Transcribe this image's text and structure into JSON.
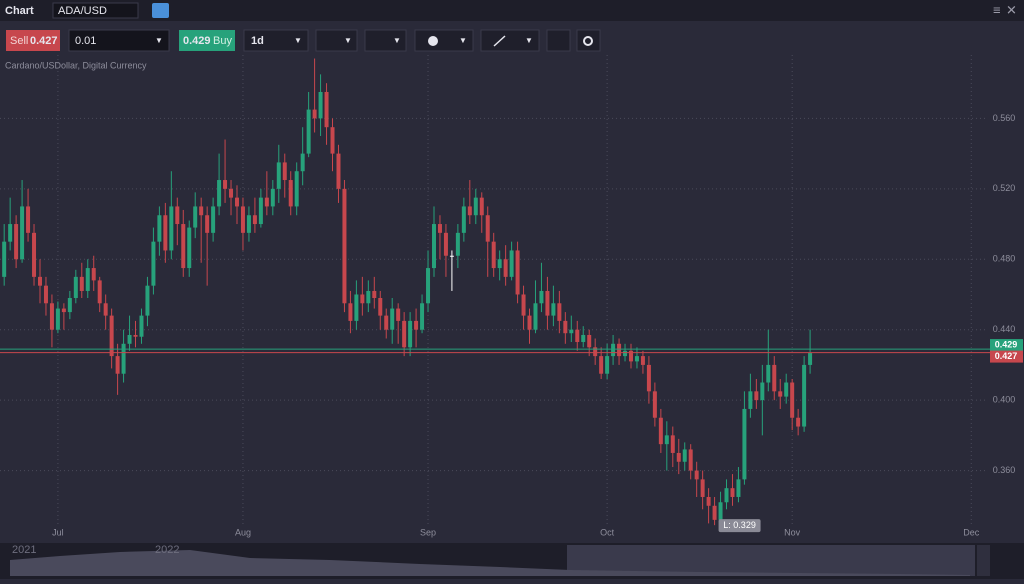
{
  "header": {
    "title": "Chart",
    "symbol": "ADA/USD"
  },
  "toolbar": {
    "sell_label": "Sell",
    "sell_price": "0.427",
    "quantity": "0.01",
    "buy_price": "0.429",
    "buy_label": "Buy",
    "timeframe": "1d"
  },
  "chart_data": {
    "type": "candlestick",
    "subtitle": "Cardano/USDollar, Digital Currency",
    "ohlc": [
      [
        0.47,
        0.5,
        0.465,
        0.49
      ],
      [
        0.49,
        0.515,
        0.485,
        0.5
      ],
      [
        0.5,
        0.505,
        0.475,
        0.48
      ],
      [
        0.48,
        0.525,
        0.478,
        0.51
      ],
      [
        0.51,
        0.52,
        0.49,
        0.495
      ],
      [
        0.495,
        0.5,
        0.465,
        0.47
      ],
      [
        0.47,
        0.48,
        0.455,
        0.465
      ],
      [
        0.465,
        0.47,
        0.448,
        0.455
      ],
      [
        0.455,
        0.46,
        0.43,
        0.44
      ],
      [
        0.44,
        0.456,
        0.438,
        0.452
      ],
      [
        0.452,
        0.455,
        0.44,
        0.45
      ],
      [
        0.45,
        0.462,
        0.446,
        0.458
      ],
      [
        0.458,
        0.474,
        0.455,
        0.47
      ],
      [
        0.47,
        0.478,
        0.458,
        0.462
      ],
      [
        0.462,
        0.48,
        0.458,
        0.475
      ],
      [
        0.475,
        0.482,
        0.462,
        0.468
      ],
      [
        0.468,
        0.47,
        0.45,
        0.455
      ],
      [
        0.455,
        0.46,
        0.44,
        0.448
      ],
      [
        0.448,
        0.452,
        0.418,
        0.425
      ],
      [
        0.425,
        0.432,
        0.403,
        0.415
      ],
      [
        0.415,
        0.44,
        0.41,
        0.432
      ],
      [
        0.432,
        0.448,
        0.428,
        0.437
      ],
      [
        0.437,
        0.445,
        0.43,
        0.436
      ],
      [
        0.436,
        0.452,
        0.432,
        0.448
      ],
      [
        0.448,
        0.47,
        0.442,
        0.465
      ],
      [
        0.465,
        0.498,
        0.46,
        0.49
      ],
      [
        0.49,
        0.51,
        0.482,
        0.505
      ],
      [
        0.505,
        0.512,
        0.478,
        0.485
      ],
      [
        0.485,
        0.53,
        0.48,
        0.51
      ],
      [
        0.51,
        0.515,
        0.488,
        0.5
      ],
      [
        0.5,
        0.508,
        0.47,
        0.475
      ],
      [
        0.475,
        0.502,
        0.47,
        0.498
      ],
      [
        0.498,
        0.518,
        0.492,
        0.51
      ],
      [
        0.51,
        0.515,
        0.478,
        0.505
      ],
      [
        0.505,
        0.51,
        0.465,
        0.495
      ],
      [
        0.495,
        0.515,
        0.49,
        0.51
      ],
      [
        0.51,
        0.54,
        0.505,
        0.525
      ],
      [
        0.525,
        0.548,
        0.512,
        0.52
      ],
      [
        0.52,
        0.525,
        0.505,
        0.515
      ],
      [
        0.515,
        0.522,
        0.5,
        0.51
      ],
      [
        0.51,
        0.515,
        0.485,
        0.495
      ],
      [
        0.495,
        0.51,
        0.49,
        0.505
      ],
      [
        0.505,
        0.515,
        0.495,
        0.5
      ],
      [
        0.5,
        0.52,
        0.498,
        0.515
      ],
      [
        0.515,
        0.53,
        0.505,
        0.51
      ],
      [
        0.51,
        0.525,
        0.505,
        0.52
      ],
      [
        0.52,
        0.545,
        0.512,
        0.535
      ],
      [
        0.535,
        0.54,
        0.515,
        0.525
      ],
      [
        0.525,
        0.53,
        0.505,
        0.51
      ],
      [
        0.51,
        0.535,
        0.505,
        0.53
      ],
      [
        0.53,
        0.555,
        0.522,
        0.54
      ],
      [
        0.54,
        0.575,
        0.538,
        0.565
      ],
      [
        0.565,
        0.594,
        0.552,
        0.56
      ],
      [
        0.56,
        0.585,
        0.55,
        0.575
      ],
      [
        0.575,
        0.58,
        0.545,
        0.555
      ],
      [
        0.555,
        0.56,
        0.53,
        0.54
      ],
      [
        0.54,
        0.545,
        0.512,
        0.52
      ],
      [
        0.52,
        0.525,
        0.45,
        0.455
      ],
      [
        0.455,
        0.462,
        0.438,
        0.445
      ],
      [
        0.445,
        0.468,
        0.44,
        0.46
      ],
      [
        0.46,
        0.47,
        0.448,
        0.455
      ],
      [
        0.455,
        0.468,
        0.45,
        0.462
      ],
      [
        0.462,
        0.47,
        0.452,
        0.458
      ],
      [
        0.458,
        0.462,
        0.44,
        0.448
      ],
      [
        0.448,
        0.452,
        0.435,
        0.44
      ],
      [
        0.44,
        0.458,
        0.432,
        0.452
      ],
      [
        0.452,
        0.455,
        0.432,
        0.445
      ],
      [
        0.445,
        0.45,
        0.425,
        0.43
      ],
      [
        0.43,
        0.45,
        0.425,
        0.445
      ],
      [
        0.445,
        0.452,
        0.43,
        0.44
      ],
      [
        0.44,
        0.46,
        0.438,
        0.455
      ],
      [
        0.455,
        0.485,
        0.45,
        0.475
      ],
      [
        0.475,
        0.51,
        0.47,
        0.5
      ],
      [
        0.5,
        0.505,
        0.48,
        0.495
      ],
      [
        0.495,
        0.5,
        0.47,
        0.482
      ],
      [
        0.482,
        0.485,
        0.462,
        0.482
      ],
      [
        0.482,
        0.5,
        0.475,
        0.495
      ],
      [
        0.495,
        0.515,
        0.49,
        0.51
      ],
      [
        0.51,
        0.525,
        0.5,
        0.505
      ],
      [
        0.505,
        0.52,
        0.5,
        0.515
      ],
      [
        0.515,
        0.518,
        0.495,
        0.505
      ],
      [
        0.505,
        0.51,
        0.47,
        0.49
      ],
      [
        0.49,
        0.495,
        0.47,
        0.475
      ],
      [
        0.475,
        0.485,
        0.468,
        0.48
      ],
      [
        0.48,
        0.488,
        0.465,
        0.47
      ],
      [
        0.47,
        0.49,
        0.468,
        0.485
      ],
      [
        0.485,
        0.49,
        0.455,
        0.46
      ],
      [
        0.46,
        0.465,
        0.44,
        0.448
      ],
      [
        0.448,
        0.452,
        0.432,
        0.44
      ],
      [
        0.44,
        0.468,
        0.438,
        0.455
      ],
      [
        0.455,
        0.478,
        0.45,
        0.462
      ],
      [
        0.462,
        0.47,
        0.44,
        0.448
      ],
      [
        0.448,
        0.465,
        0.442,
        0.455
      ],
      [
        0.455,
        0.462,
        0.438,
        0.445
      ],
      [
        0.445,
        0.45,
        0.432,
        0.438
      ],
      [
        0.438,
        0.448,
        0.433,
        0.44
      ],
      [
        0.44,
        0.445,
        0.428,
        0.433
      ],
      [
        0.433,
        0.442,
        0.43,
        0.437
      ],
      [
        0.437,
        0.44,
        0.425,
        0.43
      ],
      [
        0.43,
        0.435,
        0.42,
        0.425
      ],
      [
        0.425,
        0.43,
        0.412,
        0.415
      ],
      [
        0.415,
        0.432,
        0.412,
        0.425
      ],
      [
        0.425,
        0.437,
        0.42,
        0.432
      ],
      [
        0.432,
        0.435,
        0.42,
        0.425
      ],
      [
        0.425,
        0.432,
        0.422,
        0.428
      ],
      [
        0.428,
        0.432,
        0.418,
        0.422
      ],
      [
        0.422,
        0.43,
        0.418,
        0.425
      ],
      [
        0.425,
        0.428,
        0.415,
        0.42
      ],
      [
        0.42,
        0.425,
        0.398,
        0.405
      ],
      [
        0.405,
        0.41,
        0.385,
        0.39
      ],
      [
        0.39,
        0.395,
        0.37,
        0.375
      ],
      [
        0.375,
        0.388,
        0.36,
        0.38
      ],
      [
        0.38,
        0.385,
        0.362,
        0.37
      ],
      [
        0.37,
        0.378,
        0.358,
        0.365
      ],
      [
        0.365,
        0.376,
        0.36,
        0.372
      ],
      [
        0.372,
        0.375,
        0.355,
        0.36
      ],
      [
        0.36,
        0.365,
        0.345,
        0.355
      ],
      [
        0.355,
        0.36,
        0.338,
        0.345
      ],
      [
        0.345,
        0.35,
        0.33,
        0.34
      ],
      [
        0.34,
        0.345,
        0.329,
        0.332
      ],
      [
        0.332,
        0.348,
        0.329,
        0.342
      ],
      [
        0.342,
        0.355,
        0.338,
        0.35
      ],
      [
        0.35,
        0.358,
        0.34,
        0.345
      ],
      [
        0.345,
        0.362,
        0.342,
        0.355
      ],
      [
        0.355,
        0.405,
        0.352,
        0.395
      ],
      [
        0.395,
        0.415,
        0.39,
        0.405
      ],
      [
        0.405,
        0.412,
        0.395,
        0.4
      ],
      [
        0.4,
        0.42,
        0.38,
        0.41
      ],
      [
        0.41,
        0.44,
        0.405,
        0.42
      ],
      [
        0.42,
        0.425,
        0.4,
        0.405
      ],
      [
        0.405,
        0.412,
        0.395,
        0.402
      ],
      [
        0.402,
        0.415,
        0.398,
        0.41
      ],
      [
        0.41,
        0.412,
        0.383,
        0.39
      ],
      [
        0.39,
        0.395,
        0.38,
        0.385
      ],
      [
        0.385,
        0.425,
        0.382,
        0.42
      ],
      [
        0.42,
        0.44,
        0.415,
        0.427
      ]
    ],
    "up_color": "#27a27b",
    "down_color": "#c7474d",
    "flat_color": "#ffffff",
    "ylim": [
      0.32,
      0.596
    ],
    "yticks": [
      {
        "value": 0.36,
        "label": "0.360"
      },
      {
        "value": 0.4,
        "label": "0.400"
      },
      {
        "value": 0.44,
        "label": "0.440"
      },
      {
        "value": 0.48,
        "label": "0.480"
      },
      {
        "value": 0.52,
        "label": "0.520"
      },
      {
        "value": 0.56,
        "label": "0.560"
      }
    ],
    "xlim": [
      -0.7,
      164.3
    ],
    "xticks": [
      {
        "value": 9,
        "label": "Jul"
      },
      {
        "value": 40,
        "label": "Aug"
      },
      {
        "value": 71,
        "label": "Sep"
      },
      {
        "value": 101,
        "label": "Oct"
      },
      {
        "value": 132,
        "label": "Nov"
      },
      {
        "value": 162,
        "label": "Dec"
      }
    ],
    "grid": true,
    "price_lines": [
      {
        "value": 0.429,
        "color": "#27a27b"
      },
      {
        "value": 0.427,
        "color": "#c7474d"
      }
    ],
    "annotation": {
      "text": "L: 0.329",
      "value": 0.329,
      "index": 119
    },
    "navigator_labels": [
      "2021",
      "2022"
    ]
  }
}
